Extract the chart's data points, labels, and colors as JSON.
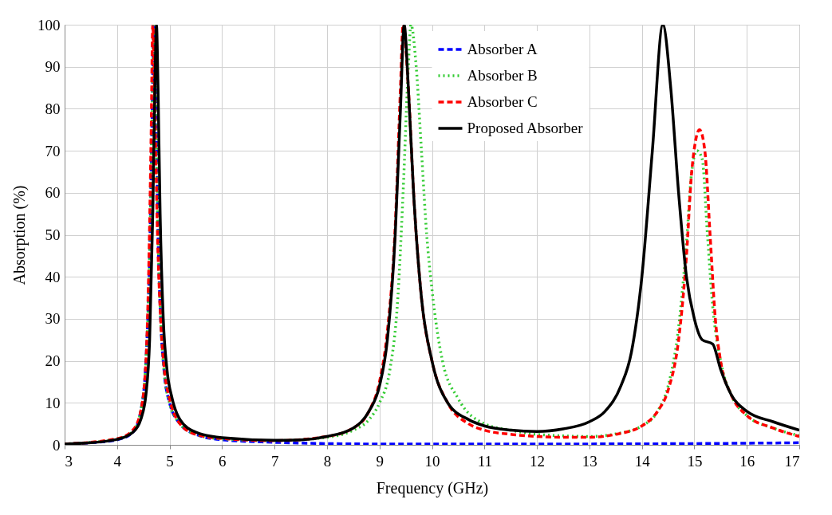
{
  "chart_data": {
    "type": "line",
    "xlabel": "Frequency (GHz)",
    "ylabel": "Absorption (%)",
    "xlim": [
      3,
      17
    ],
    "xticks": [
      3,
      4,
      5,
      6,
      7,
      8,
      9,
      10,
      11,
      12,
      13,
      14,
      15,
      16,
      17
    ],
    "ylim": [
      0,
      100
    ],
    "yticks": [
      0,
      10,
      20,
      30,
      40,
      50,
      60,
      70,
      80,
      90,
      100
    ],
    "grid": true,
    "legend": "top",
    "marker": "none",
    "series": [
      {
        "name": "Absorber A",
        "color": "#0000ff",
        "line_style": "dashed",
        "x": [
          3,
          3.5,
          4,
          4.3,
          4.45,
          4.55,
          4.62,
          4.67,
          4.7,
          4.74,
          4.78,
          4.83,
          4.9,
          5,
          5.2,
          5.5,
          6,
          7,
          8,
          9,
          12,
          15,
          17
        ],
        "values": [
          0.2,
          0.5,
          1.2,
          3,
          8,
          20,
          45,
          80,
          100,
          80,
          50,
          30,
          17,
          10,
          5,
          2.5,
          1.2,
          0.6,
          0.3,
          0.2,
          0.2,
          0.3,
          0.5
        ]
      },
      {
        "name": "Absorber B",
        "color": "#33cc33",
        "line_style": "dotted",
        "x": [
          3,
          4,
          4.3,
          4.45,
          4.55,
          4.62,
          4.67,
          4.7,
          4.74,
          4.78,
          4.83,
          4.9,
          5,
          5.2,
          5.5,
          6,
          7,
          8,
          8.5,
          8.8,
          9,
          9.2,
          9.35,
          9.45,
          9.55,
          9.6,
          9.7,
          9.8,
          9.9,
          10,
          10.2,
          10.5,
          11,
          11.5,
          12,
          13,
          13.5,
          14,
          14.3,
          14.5,
          14.7,
          14.85,
          14.95,
          15.05,
          15.15,
          15.25,
          15.35,
          15.5,
          15.7,
          16,
          16.5,
          17
        ],
        "values": [
          0.2,
          1.4,
          3.2,
          8,
          20,
          45,
          80,
          100,
          80,
          50,
          30,
          17,
          10,
          5,
          2.5,
          1.4,
          1,
          1.8,
          3.5,
          6,
          10,
          18,
          35,
          60,
          90,
          100,
          90,
          70,
          50,
          37,
          20,
          11,
          5,
          3.5,
          2.5,
          2,
          2.6,
          4.5,
          8,
          14,
          28,
          48,
          65,
          70,
          68,
          50,
          33,
          20,
          12,
          7,
          4,
          2.2
        ]
      },
      {
        "name": "Absorber C",
        "color": "#ff0000",
        "line_style": "dashed",
        "x": [
          3,
          4,
          4.3,
          4.45,
          4.55,
          4.6,
          4.65,
          4.68,
          4.72,
          4.77,
          4.83,
          4.9,
          5,
          5.2,
          5.5,
          6,
          7,
          8,
          8.5,
          8.8,
          9,
          9.15,
          9.3,
          9.4,
          9.45,
          9.55,
          9.65,
          9.8,
          10,
          10.3,
          10.7,
          11,
          11.5,
          12,
          12.5,
          13,
          13.5,
          14,
          14.3,
          14.5,
          14.7,
          14.85,
          14.95,
          15.1,
          15.2,
          15.3,
          15.4,
          15.5,
          15.7,
          16,
          16.5,
          17
        ],
        "values": [
          0.2,
          1.5,
          3.5,
          8,
          20,
          40,
          75,
          100,
          80,
          50,
          30,
          18,
          11,
          5,
          2.5,
          1.5,
          1,
          2,
          4,
          8,
          15,
          27,
          52,
          85,
          100,
          85,
          60,
          35,
          20,
          10,
          5,
          3.5,
          2.5,
          2,
          1.8,
          1.8,
          2.5,
          4.5,
          8,
          13,
          25,
          45,
          65,
          75,
          70,
          50,
          30,
          20,
          12,
          7,
          4,
          2
        ]
      },
      {
        "name": "Proposed Absorber",
        "color": "#000000",
        "line_style": "solid",
        "x": [
          3,
          3.5,
          4,
          4.3,
          4.45,
          4.55,
          4.62,
          4.68,
          4.72,
          4.75,
          4.78,
          4.82,
          4.88,
          4.95,
          5.05,
          5.2,
          5.5,
          6,
          7,
          7.5,
          8,
          8.5,
          8.8,
          9,
          9.15,
          9.3,
          9.4,
          9.47,
          9.55,
          9.65,
          9.8,
          10,
          10.3,
          10.7,
          11,
          11.5,
          12,
          12.5,
          13,
          13.3,
          13.6,
          13.8,
          14,
          14.2,
          14.4,
          14.55,
          14.7,
          14.85,
          15,
          15.15,
          15.35,
          15.5,
          15.7,
          16,
          16.5,
          17
        ],
        "values": [
          0.2,
          0.5,
          1.3,
          3,
          6,
          12,
          25,
          55,
          85,
          100,
          85,
          55,
          30,
          18,
          11,
          6,
          3,
          1.7,
          1.1,
          1.2,
          2,
          4,
          8,
          14,
          25,
          50,
          80,
          100,
          85,
          60,
          35,
          20,
          10,
          6,
          4.5,
          3.5,
          3.2,
          3.8,
          5.5,
          8,
          14,
          22,
          40,
          70,
          100,
          85,
          60,
          40,
          30,
          25,
          24,
          18,
          12,
          8,
          5.5,
          3.5
        ]
      }
    ]
  }
}
